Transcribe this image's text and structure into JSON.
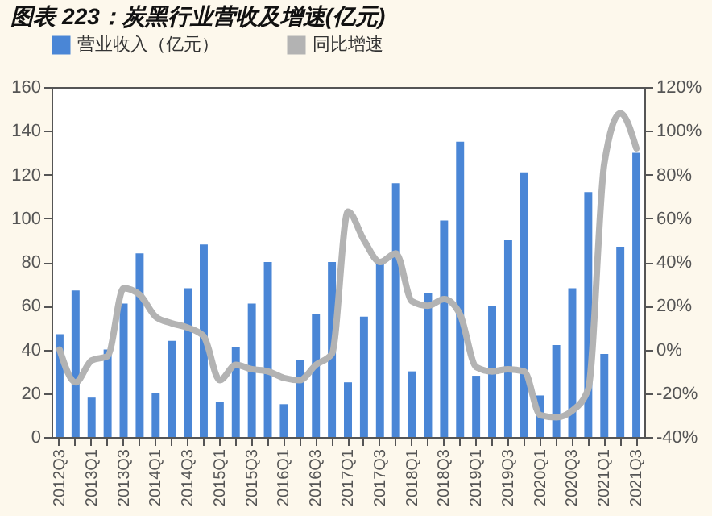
{
  "chart_data": {
    "type": "bar",
    "title": "图表 223：炭黑行业营收及增速(亿元)",
    "categories": [
      "2012Q3",
      null,
      "2013Q1",
      null,
      "2013Q3",
      null,
      "2014Q1",
      null,
      "2014Q3",
      null,
      "2015Q1",
      null,
      "2015Q3",
      null,
      "2016Q1",
      null,
      "2016Q3",
      null,
      "2017Q1",
      null,
      "2017Q3",
      null,
      "2018Q1",
      null,
      "2018Q3",
      null,
      "2019Q1",
      null,
      "2019Q3",
      null,
      "2020Q1",
      null,
      "2020Q3",
      null,
      "2021Q1",
      null,
      "2021Q3"
    ],
    "series": [
      {
        "name": "营业收入（亿元）",
        "color": "#4a86d6",
        "values": [
          47,
          67,
          18,
          40,
          61,
          84,
          20,
          44,
          68,
          88,
          16,
          41,
          61,
          80,
          15,
          35,
          56,
          80,
          25,
          55,
          80,
          116,
          30,
          66,
          99,
          135,
          28,
          60,
          90,
          121,
          19,
          42,
          68,
          112,
          38,
          87,
          130
        ]
      },
      {
        "name": "同比增速",
        "type": "line",
        "axis": "y2",
        "color": "#b3b3b3",
        "values": [
          0,
          -15,
          -5,
          -3,
          28,
          25,
          15,
          12,
          10,
          6,
          -14,
          -7,
          -9,
          -10,
          -13,
          -14,
          -7,
          -2,
          63,
          50,
          40,
          44,
          22,
          20,
          23,
          16,
          -8,
          -10,
          -9,
          -10,
          -30,
          -31,
          -28,
          -18,
          85,
          108,
          92
        ]
      }
    ],
    "ylim": [
      0,
      160
    ],
    "yticks": [
      0,
      20,
      40,
      60,
      80,
      100,
      120,
      140,
      160
    ],
    "y2lim": [
      -40,
      120
    ],
    "y2ticks": [
      {
        "value": -40,
        "label": "-40%"
      },
      {
        "value": -20,
        "label": "-20%"
      },
      {
        "value": 0,
        "label": "0%"
      },
      {
        "value": 20,
        "label": "20%"
      },
      {
        "value": 40,
        "label": "40%"
      },
      {
        "value": 60,
        "label": "60%"
      },
      {
        "value": 80,
        "label": "80%"
      },
      {
        "value": 100,
        "label": "100%"
      },
      {
        "value": 120,
        "label": "120%"
      }
    ],
    "legend": "top"
  }
}
